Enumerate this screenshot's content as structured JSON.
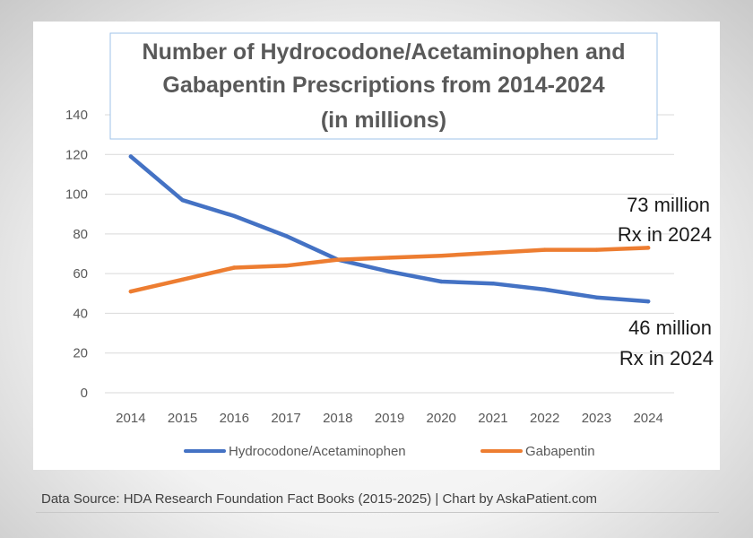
{
  "chart_data": {
    "type": "line",
    "title_lines": [
      "Number of Hydrocodone/Acetaminophen and",
      "Gabapentin Prescriptions from 2014-2024",
      "(in millions)"
    ],
    "categories": [
      "2014",
      "2015",
      "2016",
      "2017",
      "2018",
      "2019",
      "2020",
      "2021",
      "2022",
      "2023",
      "2024"
    ],
    "y_ticks": [
      "0",
      "20",
      "40",
      "60",
      "80",
      "100",
      "120",
      "140"
    ],
    "ylim": [
      0,
      140
    ],
    "grid": true,
    "legend_position": "bottom",
    "series": [
      {
        "name": "Hydrocodone/Acetaminophen",
        "color": "#4472C4",
        "values": [
          119,
          97,
          89,
          79,
          67,
          61,
          56,
          55,
          52,
          48,
          46
        ]
      },
      {
        "name": "Gabapentin",
        "color": "#ED7D31",
        "values": [
          51,
          57,
          63,
          64,
          67,
          68,
          69,
          70.5,
          72,
          72,
          73
        ]
      }
    ],
    "annotations": [
      {
        "lines": [
          "73 million",
          "Rx in 2024"
        ]
      },
      {
        "lines": [
          "46 million",
          "Rx in 2024"
        ]
      }
    ],
    "source": "Data Source: HDA Research Foundation Fact Books (2015-2025) | Chart by AskaPatient.com"
  }
}
